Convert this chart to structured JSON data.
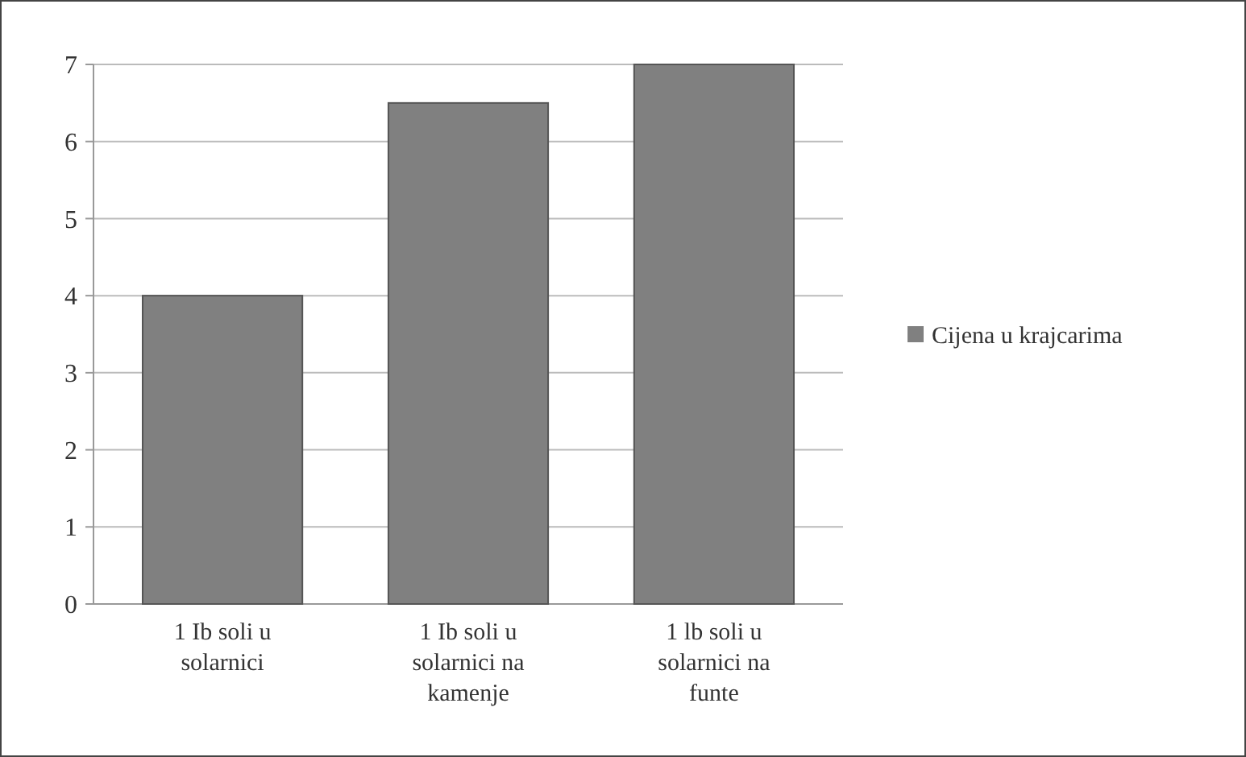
{
  "chart_data": {
    "type": "bar",
    "categories": [
      "1 Ib soli u solarnici",
      "1 Ib soli u solarnici na kamenje",
      "1 lb soli u solarnici na funte"
    ],
    "series": [
      {
        "name": "Cijena u krajcarima",
        "color": "#808080",
        "values": [
          4,
          6.5,
          7
        ]
      }
    ],
    "ylim": [
      0,
      7
    ],
    "yticks": [
      0,
      1,
      2,
      3,
      4,
      5,
      6,
      7
    ],
    "grid": "y",
    "legend": "right"
  }
}
